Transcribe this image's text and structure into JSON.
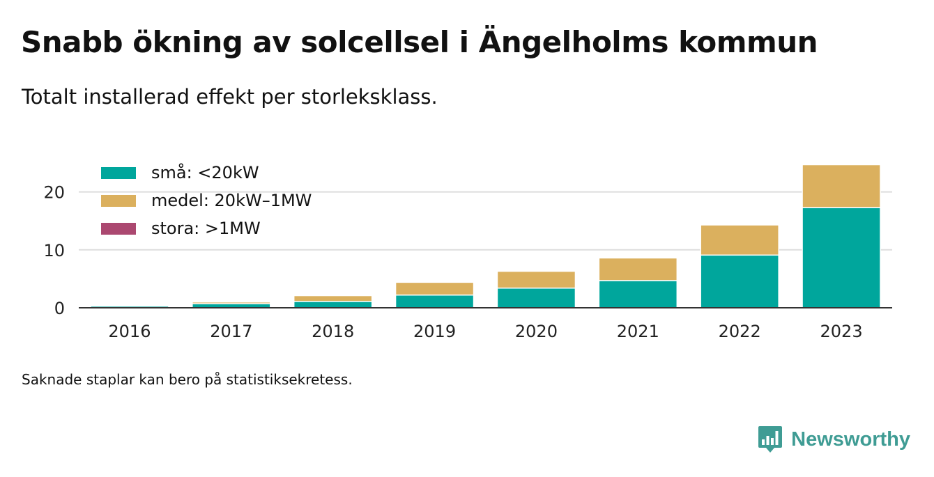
{
  "header": {
    "title": "Snabb ökning av solcellsel i Ängelholms kommun",
    "subtitle": "Totalt installerad effekt per storleksklass."
  },
  "footer": {
    "note": "Saknade staplar kan bero på statistiksekretess.",
    "brand": "Newsworthy",
    "brand_icon": "bar-chart-speech-bubble-icon"
  },
  "chart_data": {
    "type": "bar",
    "stacked": true,
    "categories": [
      "2016",
      "2017",
      "2018",
      "2019",
      "2020",
      "2021",
      "2022",
      "2023"
    ],
    "series": [
      {
        "name": "små: <20kW",
        "color": "#00a69c",
        "values": [
          0.3,
          0.7,
          1.1,
          2.2,
          3.4,
          4.7,
          9.1,
          17.3
        ]
      },
      {
        "name": "medel: 20kW–1MW",
        "color": "#dbb05e",
        "values": [
          0.05,
          0.3,
          1.0,
          2.2,
          2.9,
          3.9,
          5.2,
          7.4
        ]
      },
      {
        "name": "stora: >1MW",
        "color": "#ab4870",
        "values": [
          0,
          0,
          0,
          0,
          0,
          0,
          0,
          0
        ]
      }
    ],
    "yticks": [
      0,
      10,
      20
    ],
    "ylim": [
      0,
      25
    ],
    "xlabel": "",
    "ylabel": "",
    "grid": true,
    "legend_position": "top-left"
  }
}
